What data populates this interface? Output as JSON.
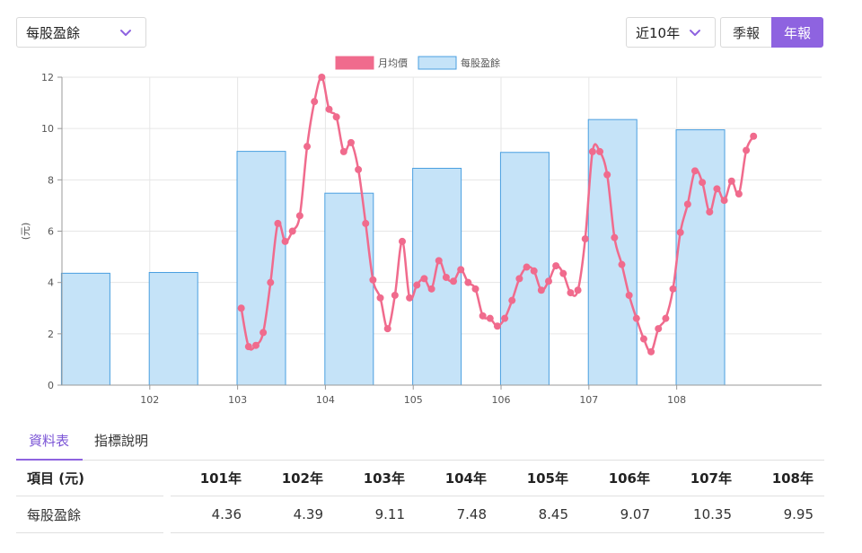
{
  "controls": {
    "metric_select": "每股盈餘",
    "range_select": "近10年",
    "quarterly_button": "季報",
    "annual_button": "年報"
  },
  "colors": {
    "accent": "#8e63e0",
    "price_line": "#f06b8d",
    "eps_bar_fill": "#c5e3f8",
    "eps_bar_border": "#4a9fe0"
  },
  "tabs": {
    "data_table": "資料表",
    "indicator_desc": "指標說明"
  },
  "table": {
    "header_label": "項目 (元)",
    "row_label": "每股盈餘",
    "years": [
      "101年",
      "102年",
      "103年",
      "104年",
      "105年",
      "106年",
      "107年",
      "108年"
    ],
    "values": [
      "4.36",
      "4.39",
      "9.11",
      "7.48",
      "8.45",
      "9.07",
      "10.35",
      "9.95"
    ]
  },
  "chart_data": {
    "type": "bar",
    "ylabel": "(元)",
    "ylim": [
      0,
      12
    ],
    "y_ticks": [
      "0",
      "2",
      "4",
      "6",
      "8",
      "10",
      "12"
    ],
    "x_tick_labels": [
      "102",
      "103",
      "104",
      "105",
      "106",
      "107",
      "108"
    ],
    "grid": true,
    "legend_position": "top-center",
    "series": [
      {
        "name": "月均價",
        "kind": "line",
        "start_year": 103,
        "points_per_year": 12,
        "values": [
          3.0,
          1.5,
          1.55,
          2.05,
          4.0,
          6.3,
          5.6,
          6.0,
          6.6,
          9.3,
          11.05,
          12.0,
          10.75,
          10.45,
          9.1,
          9.45,
          8.4,
          6.3,
          4.1,
          3.4,
          2.2,
          3.5,
          5.6,
          3.4,
          3.9,
          4.15,
          3.75,
          4.85,
          4.2,
          4.05,
          4.5,
          4.0,
          3.75,
          2.7,
          2.6,
          2.3,
          2.6,
          3.3,
          4.15,
          4.6,
          4.45,
          3.7,
          4.05,
          4.65,
          4.35,
          3.6,
          3.7,
          5.7,
          9.1,
          9.1,
          8.2,
          5.75,
          4.7,
          3.5,
          2.6,
          1.8,
          1.3,
          2.2,
          2.6,
          3.75,
          5.95,
          7.05,
          8.35,
          7.9,
          6.75,
          7.65,
          7.2,
          7.95,
          7.45,
          9.15,
          9.7
        ]
      },
      {
        "name": "每股盈餘",
        "kind": "bar",
        "categories": [
          "101",
          "102",
          "103",
          "104",
          "105",
          "106",
          "107",
          "108"
        ],
        "values": [
          4.36,
          4.39,
          9.11,
          7.48,
          8.45,
          9.07,
          10.35,
          9.95
        ]
      }
    ]
  }
}
